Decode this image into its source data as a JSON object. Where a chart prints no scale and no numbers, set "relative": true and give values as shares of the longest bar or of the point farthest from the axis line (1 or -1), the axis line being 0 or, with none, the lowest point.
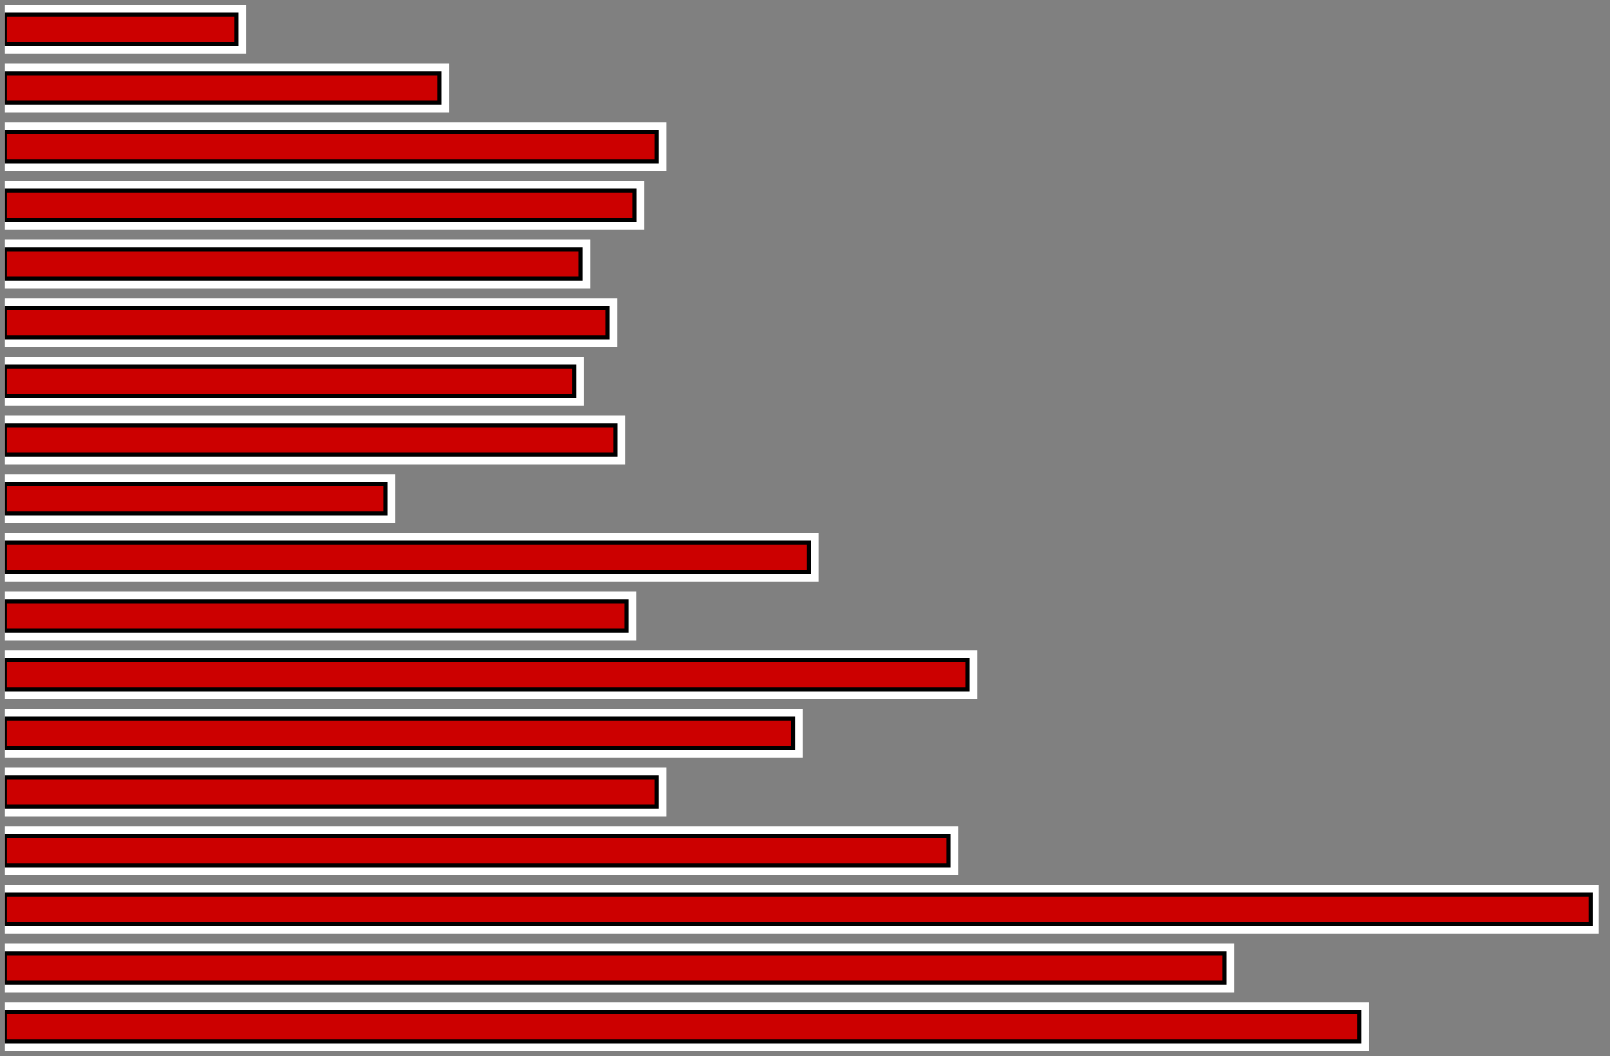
{
  "chart_data": {
    "type": "bar",
    "orientation": "horizontal",
    "relative": true,
    "categories": [
      null,
      null,
      null,
      null,
      null,
      null,
      null,
      null,
      null,
      null,
      null,
      null,
      null,
      null,
      null,
      null,
      null,
      null
    ],
    "values": [
      0.146,
      0.274,
      0.411,
      0.397,
      0.363,
      0.38,
      0.359,
      0.385,
      0.24,
      0.507,
      0.392,
      0.607,
      0.497,
      0.411,
      0.595,
      1,
      0.769,
      0.854
    ],
    "color": "#cc0000",
    "grid": false,
    "legend": false
  }
}
